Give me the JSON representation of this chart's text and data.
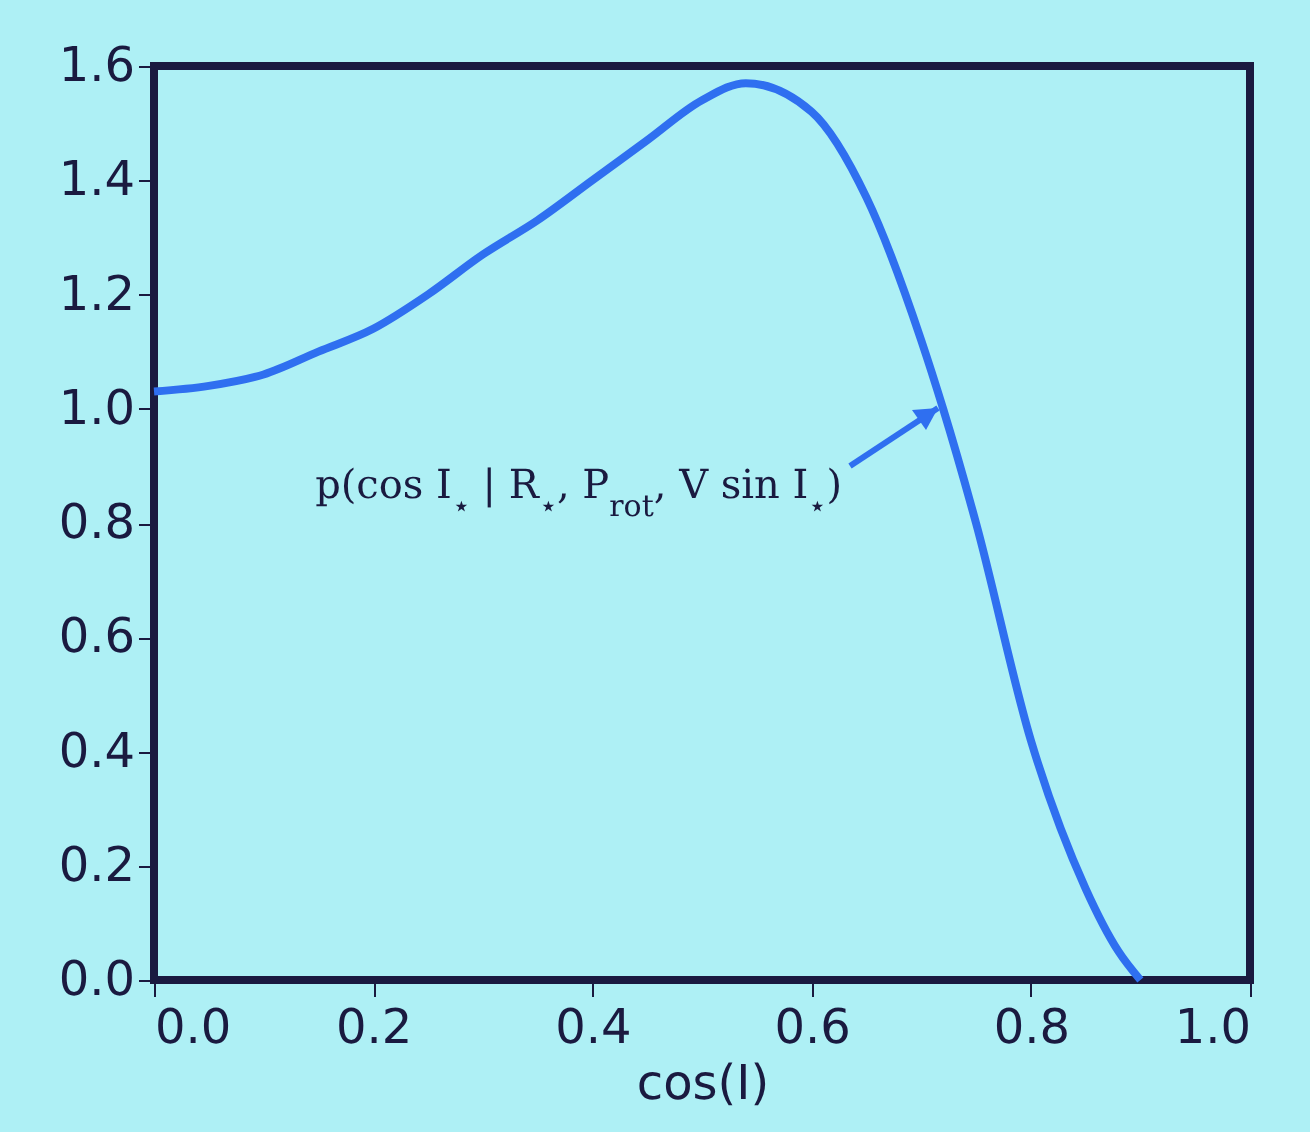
{
  "chart_data": {
    "type": "line",
    "xlabel": "cos(I)",
    "x": [
      0,
      0.05,
      0.1,
      0.15,
      0.2,
      0.25,
      0.3,
      0.35,
      0.4,
      0.45,
      0.5,
      0.54,
      0.6,
      0.65,
      0.7,
      0.72,
      0.75,
      0.8,
      0.85,
      0.88,
      0.9
    ],
    "series": [
      {
        "color": "#2f6ff0",
        "values": [
          1.03,
          1.04,
          1.06,
          1.1,
          1.14,
          1.2,
          1.27,
          1.33,
          1.4,
          1.47,
          1.54,
          1.57,
          1.52,
          1.37,
          1.12,
          1.0,
          0.8,
          0.42,
          0.16,
          0.05,
          0.0
        ]
      }
    ],
    "xlim": [
      0,
      1
    ],
    "ylim": [
      0,
      1.6
    ],
    "xticks": [
      {
        "value": 0,
        "label": "0.0"
      },
      0.2,
      0.4,
      0.6,
      0.8,
      {
        "value": 1,
        "label": "1.0"
      }
    ],
    "yticks": [
      {
        "value": 0,
        "label": "0.0"
      },
      0.2,
      0.4,
      0.6,
      0.8,
      {
        "value": 1,
        "label": "1.0"
      },
      1.2,
      1.4,
      1.6
    ],
    "grid": false,
    "legend": false,
    "marker": "none",
    "line_style": "solid",
    "annotations": [
      "p(cos I$_{⋆}$ | R$_{⋆}$, P$_{rot}$, V sin I$_{⋆}$)"
    ]
  }
}
